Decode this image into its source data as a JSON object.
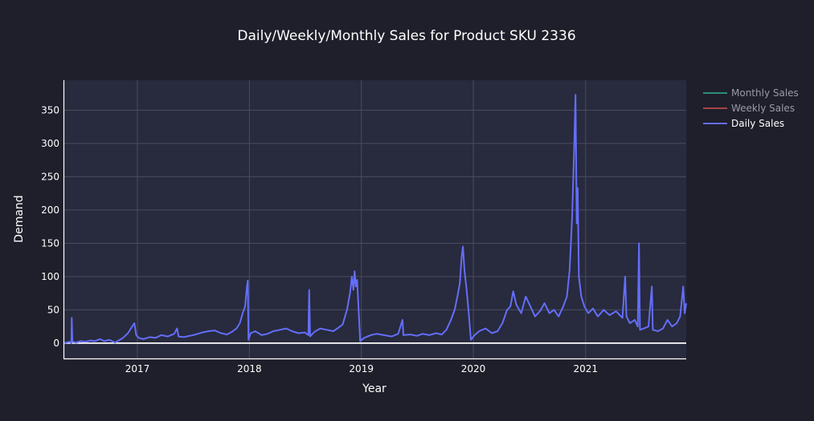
{
  "chart_data": {
    "type": "line",
    "title": "Daily/Weekly/Monthly Sales for Product SKU 2336",
    "xlabel": "Year",
    "ylabel": "Demand",
    "x_ticks": [
      "2017",
      "2018",
      "2019",
      "2020",
      "2021"
    ],
    "y_ticks": [
      0,
      50,
      100,
      150,
      200,
      250,
      300,
      350
    ],
    "xlim": [
      "2016-05-05",
      "2021-11-25"
    ],
    "ylim": [
      -23,
      395
    ],
    "grid": true,
    "legend_position": "top-right",
    "series": [
      {
        "name": "Monthly Sales",
        "color": "#2a8c7a",
        "visible": false,
        "values": []
      },
      {
        "name": "Weekly Sales",
        "color": "#a34545",
        "visible": false,
        "values": []
      },
      {
        "name": "Daily Sales",
        "color": "#636efa",
        "visible": true,
        "points": [
          [
            "2016-05-05",
            0
          ],
          [
            "2016-05-15",
            1
          ],
          [
            "2016-05-25",
            2
          ],
          [
            "2016-05-31",
            0
          ],
          [
            "2016-06-01",
            38
          ],
          [
            "2016-06-03",
            2
          ],
          [
            "2016-06-15",
            1
          ],
          [
            "2016-07-01",
            3
          ],
          [
            "2016-07-15",
            2
          ],
          [
            "2016-08-01",
            4
          ],
          [
            "2016-08-15",
            3
          ],
          [
            "2016-09-01",
            6
          ],
          [
            "2016-09-15",
            3
          ],
          [
            "2016-10-01",
            5
          ],
          [
            "2016-10-10",
            3
          ],
          [
            "2016-10-20",
            1
          ],
          [
            "2016-11-01",
            4
          ],
          [
            "2016-11-15",
            8
          ],
          [
            "2016-12-01",
            15
          ],
          [
            "2016-12-15",
            25
          ],
          [
            "2016-12-22",
            30
          ],
          [
            "2016-12-28",
            12
          ],
          [
            "2017-01-05",
            8
          ],
          [
            "2017-01-20",
            6
          ],
          [
            "2017-02-10",
            9
          ],
          [
            "2017-03-01",
            8
          ],
          [
            "2017-03-20",
            12
          ],
          [
            "2017-04-10",
            10
          ],
          [
            "2017-05-01",
            14
          ],
          [
            "2017-05-10",
            22
          ],
          [
            "2017-05-15",
            10
          ],
          [
            "2017-06-01",
            9
          ],
          [
            "2017-06-20",
            11
          ],
          [
            "2017-07-10",
            13
          ],
          [
            "2017-08-01",
            16
          ],
          [
            "2017-08-20",
            18
          ],
          [
            "2017-09-10",
            19
          ],
          [
            "2017-10-01",
            15
          ],
          [
            "2017-10-20",
            13
          ],
          [
            "2017-11-05",
            17
          ],
          [
            "2017-11-20",
            22
          ],
          [
            "2017-12-01",
            30
          ],
          [
            "2017-12-10",
            45
          ],
          [
            "2017-12-18",
            55
          ],
          [
            "2017-12-24",
            85
          ],
          [
            "2017-12-27",
            94
          ],
          [
            "2017-12-29",
            5
          ],
          [
            "2018-01-05",
            15
          ],
          [
            "2018-01-20",
            18
          ],
          [
            "2018-02-10",
            12
          ],
          [
            "2018-03-01",
            14
          ],
          [
            "2018-03-20",
            18
          ],
          [
            "2018-04-10",
            20
          ],
          [
            "2018-05-01",
            22
          ],
          [
            "2018-05-20",
            18
          ],
          [
            "2018-06-10",
            15
          ],
          [
            "2018-07-01",
            16
          ],
          [
            "2018-07-12",
            12
          ],
          [
            "2018-07-15",
            80
          ],
          [
            "2018-07-18",
            10
          ],
          [
            "2018-08-01",
            17
          ],
          [
            "2018-08-20",
            22
          ],
          [
            "2018-09-10",
            20
          ],
          [
            "2018-10-01",
            18
          ],
          [
            "2018-10-15",
            22
          ],
          [
            "2018-11-01",
            28
          ],
          [
            "2018-11-15",
            50
          ],
          [
            "2018-11-25",
            75
          ],
          [
            "2018-12-01",
            100
          ],
          [
            "2018-12-06",
            80
          ],
          [
            "2018-12-10",
            108
          ],
          [
            "2018-12-14",
            85
          ],
          [
            "2018-12-18",
            95
          ],
          [
            "2018-12-22",
            60
          ],
          [
            "2018-12-28",
            3
          ],
          [
            "2019-01-10",
            8
          ],
          [
            "2019-02-01",
            12
          ],
          [
            "2019-02-20",
            14
          ],
          [
            "2019-03-15",
            12
          ],
          [
            "2019-04-10",
            10
          ],
          [
            "2019-05-01",
            14
          ],
          [
            "2019-05-15",
            35
          ],
          [
            "2019-05-18",
            12
          ],
          [
            "2019-06-10",
            13
          ],
          [
            "2019-07-01",
            11
          ],
          [
            "2019-07-20",
            14
          ],
          [
            "2019-08-10",
            12
          ],
          [
            "2019-09-01",
            15
          ],
          [
            "2019-09-20",
            13
          ],
          [
            "2019-10-05",
            20
          ],
          [
            "2019-10-20",
            35
          ],
          [
            "2019-11-01",
            50
          ],
          [
            "2019-11-10",
            70
          ],
          [
            "2019-11-18",
            90
          ],
          [
            "2019-11-24",
            130
          ],
          [
            "2019-11-28",
            145
          ],
          [
            "2019-12-03",
            110
          ],
          [
            "2019-12-10",
            80
          ],
          [
            "2019-12-18",
            40
          ],
          [
            "2019-12-24",
            5
          ],
          [
            "2020-01-05",
            12
          ],
          [
            "2020-01-20",
            18
          ],
          [
            "2020-02-10",
            22
          ],
          [
            "2020-03-01",
            15
          ],
          [
            "2020-03-20",
            18
          ],
          [
            "2020-04-05",
            30
          ],
          [
            "2020-04-20",
            50
          ],
          [
            "2020-05-01",
            55
          ],
          [
            "2020-05-10",
            78
          ],
          [
            "2020-05-20",
            58
          ],
          [
            "2020-06-05",
            45
          ],
          [
            "2020-06-20",
            70
          ],
          [
            "2020-07-05",
            55
          ],
          [
            "2020-07-20",
            40
          ],
          [
            "2020-08-05",
            48
          ],
          [
            "2020-08-20",
            60
          ],
          [
            "2020-09-05",
            45
          ],
          [
            "2020-09-20",
            50
          ],
          [
            "2020-10-05",
            40
          ],
          [
            "2020-10-20",
            55
          ],
          [
            "2020-11-01",
            70
          ],
          [
            "2020-11-10",
            110
          ],
          [
            "2020-11-18",
            190
          ],
          [
            "2020-11-25",
            300
          ],
          [
            "2020-11-29",
            373
          ],
          [
            "2020-12-03",
            180
          ],
          [
            "2020-12-06",
            233
          ],
          [
            "2020-12-10",
            100
          ],
          [
            "2020-12-18",
            70
          ],
          [
            "2020-12-28",
            55
          ],
          [
            "2021-01-10",
            45
          ],
          [
            "2021-01-25",
            52
          ],
          [
            "2021-02-10",
            40
          ],
          [
            "2021-03-01",
            50
          ],
          [
            "2021-03-20",
            42
          ],
          [
            "2021-04-10",
            48
          ],
          [
            "2021-05-01",
            38
          ],
          [
            "2021-05-10",
            100
          ],
          [
            "2021-05-14",
            40
          ],
          [
            "2021-05-25",
            30
          ],
          [
            "2021-06-10",
            35
          ],
          [
            "2021-06-20",
            25
          ],
          [
            "2021-06-24",
            150
          ],
          [
            "2021-06-27",
            20
          ],
          [
            "2021-07-10",
            22
          ],
          [
            "2021-07-25",
            25
          ],
          [
            "2021-08-05",
            85
          ],
          [
            "2021-08-08",
            20
          ],
          [
            "2021-08-25",
            18
          ],
          [
            "2021-09-10",
            22
          ],
          [
            "2021-09-25",
            35
          ],
          [
            "2021-10-10",
            25
          ],
          [
            "2021-10-25",
            30
          ],
          [
            "2021-11-05",
            40
          ],
          [
            "2021-11-15",
            85
          ],
          [
            "2021-11-20",
            45
          ],
          [
            "2021-11-25",
            60
          ]
        ]
      }
    ]
  }
}
